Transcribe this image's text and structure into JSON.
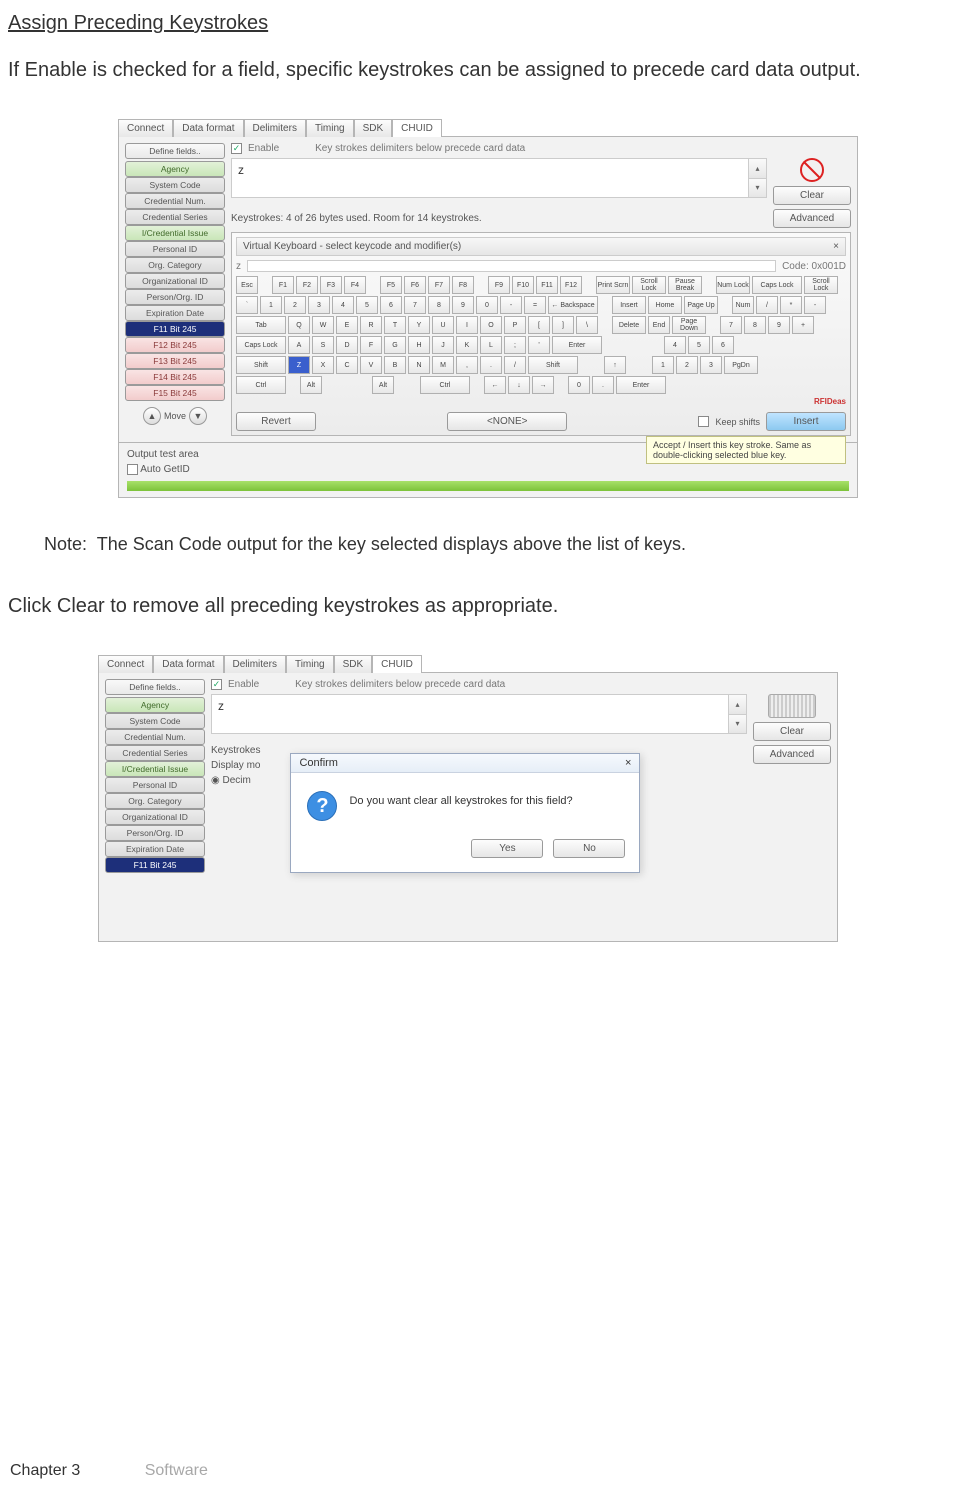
{
  "doc": {
    "section_title": "Assign Preceding Keystrokes",
    "para1": "If Enable is checked for a field, specific keystrokes can be assigned to precede card data output.",
    "note_label": "Note:",
    "note_text": "The Scan Code output for the key selected displays above the list of keys.",
    "para2": "Click Clear to remove all preceding keystrokes as appropriate.",
    "footer_chapter": "Chapter 3",
    "footer_section": "Software"
  },
  "tabs": [
    "Connect",
    "Data format",
    "Delimiters",
    "Timing",
    "SDK",
    "CHUID"
  ],
  "active_tab": "CHUID",
  "define_fields_btn": "Define fields..",
  "enable_label": "Enable",
  "hint_text": "Key strokes delimiters below precede card data",
  "fields": [
    {
      "label": "Agency",
      "cls": "fld-green"
    },
    {
      "label": "System Code",
      "cls": "fld-grey"
    },
    {
      "label": "Credential Num.",
      "cls": "fld-grey"
    },
    {
      "label": "Credential Series",
      "cls": "fld-grey"
    },
    {
      "label": "I/Credential Issue",
      "cls": "fld-green"
    },
    {
      "label": "Personal ID",
      "cls": "fld-grey"
    },
    {
      "label": "Org. Category",
      "cls": "fld-grey"
    },
    {
      "label": "Organizational ID",
      "cls": "fld-grey"
    },
    {
      "label": "Person/Org. ID",
      "cls": "fld-grey"
    },
    {
      "label": "Expiration Date",
      "cls": "fld-grey"
    },
    {
      "label": "F11 Bit 245",
      "cls": "fld-blue"
    },
    {
      "label": "F12 Bit 245",
      "cls": "fld-red"
    },
    {
      "label": "F13 Bit 245",
      "cls": "fld-red"
    },
    {
      "label": "F14 Bit 245",
      "cls": "fld-red"
    },
    {
      "label": "F15 Bit 245",
      "cls": "fld-red"
    }
  ],
  "move_label": "Move",
  "textbox_value": "z",
  "clear_btn": "Clear",
  "advanced_btn": "Advanced",
  "status_line": "Keystrokes: 4 of 26 bytes used. Room for 14 keystrokes.",
  "vk_title": "Virtual Keyboard - select keycode and modifier(s)",
  "vk_close": "×",
  "vk_input": "z",
  "vk_code": "Code: 0x001D",
  "kb_rows": [
    [
      "Esc",
      " ",
      "F1",
      "F2",
      "F3",
      "F4",
      " ",
      "F5",
      "F6",
      "F7",
      "F8",
      " ",
      "F9",
      "F10",
      "F11",
      "F12",
      " ",
      "Print Scrn",
      "Scroll Lock",
      "Pause Break",
      " ",
      "Num Lock",
      "Caps Lock",
      "Scroll Lock"
    ],
    [
      "`",
      "1",
      "2",
      "3",
      "4",
      "5",
      "6",
      "7",
      "8",
      "9",
      "0",
      "-",
      "=",
      "← Backspace",
      " ",
      "Insert",
      "Home",
      "Page Up",
      " ",
      "Num",
      "/",
      "*",
      "-"
    ],
    [
      "Tab",
      "Q",
      "W",
      "E",
      "R",
      "T",
      "Y",
      "U",
      "I",
      "O",
      "P",
      "[",
      "]",
      "\\",
      " ",
      "Delete",
      "End",
      "Page Down",
      " ",
      "7",
      "8",
      "9",
      "+"
    ],
    [
      "Caps Lock",
      "A",
      "S",
      "D",
      "F",
      "G",
      "H",
      "J",
      "K",
      "L",
      ";",
      "'",
      "Enter",
      " ",
      " ",
      " ",
      " ",
      " ",
      "4",
      "5",
      "6",
      " "
    ],
    [
      "Shift",
      "Z",
      "X",
      "C",
      "V",
      "B",
      "N",
      "M",
      ",",
      ".",
      "/",
      "Shift",
      " ",
      " ",
      "↑",
      " ",
      " ",
      "1",
      "2",
      "3",
      "PgDn"
    ],
    [
      "Ctrl",
      "",
      "Alt",
      "",
      "",
      "",
      "",
      "Alt",
      "",
      "",
      "Ctrl",
      " ",
      "←",
      "↓",
      "→",
      " ",
      "0",
      ".",
      "Enter"
    ]
  ],
  "revert_btn": "Revert",
  "none_btn": "<NONE>",
  "keep_shifts": "Keep shifts",
  "insert_btn": "Insert",
  "tooltip": "Accept / Insert this key stroke. Same as double-clicking selected blue key.",
  "out_label": "Output test area",
  "auto_getid": "Auto GetID",
  "rfid_brand": "RFIDeas",
  "shot2": {
    "status_cut": "Keystrokes",
    "display_mode": "Display mo",
    "decimal": "Decim",
    "dlg_title": "Confirm",
    "dlg_msg": "Do you want clear all keystrokes for this field?",
    "yes": "Yes",
    "no": "No"
  }
}
